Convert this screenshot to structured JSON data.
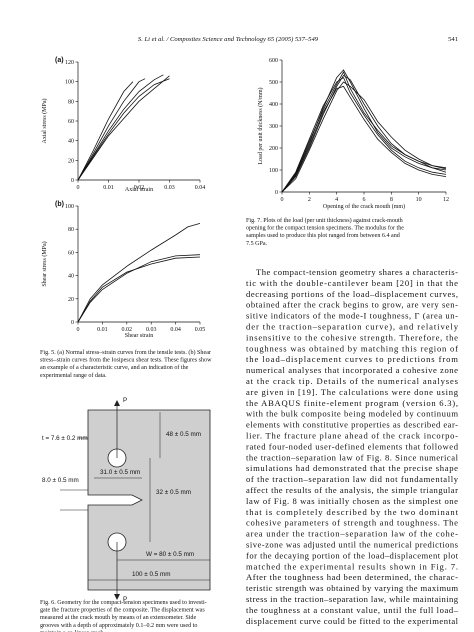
{
  "header": {
    "running_title": "S. Li et al. / Composites Science and Technology 65 (2005) 537–549",
    "page": "541"
  },
  "chart_data": [
    {
      "type": "line",
      "panel": "(a)",
      "xlabel": "Axial strain",
      "ylabel": "Axial stress (MPa)",
      "xlim": [
        0,
        0.04
      ],
      "xticks": [
        0,
        0.01,
        0.02,
        0.03,
        0.04
      ],
      "ylim": [
        0,
        120
      ],
      "yticks": [
        0,
        20,
        40,
        60,
        80,
        100,
        120
      ],
      "series": [
        {
          "color": "#111",
          "x": [
            0,
            0.005,
            0.01,
            0.015,
            0.018
          ],
          "values": [
            0,
            30,
            62,
            90,
            100
          ]
        },
        {
          "color": "#111",
          "x": [
            0,
            0.005,
            0.01,
            0.015,
            0.02,
            0.022
          ],
          "values": [
            0,
            27,
            55,
            80,
            100,
            103
          ]
        },
        {
          "color": "#111",
          "x": [
            0,
            0.005,
            0.01,
            0.015,
            0.02,
            0.025,
            0.028
          ],
          "values": [
            0,
            25,
            50,
            72,
            90,
            102,
            107
          ]
        },
        {
          "color": "#111",
          "x": [
            0,
            0.005,
            0.01,
            0.015,
            0.02,
            0.025,
            0.03
          ],
          "values": [
            0,
            24,
            47,
            68,
            85,
            97,
            103
          ]
        },
        {
          "color": "#111",
          "x": [
            0,
            0.01,
            0.02,
            0.03
          ],
          "values": [
            0,
            45,
            80,
            106
          ]
        }
      ]
    },
    {
      "type": "line",
      "panel": "(b)",
      "xlabel": "Shear strain",
      "ylabel": "Shear stress (MPa)",
      "xlim": [
        0,
        0.05
      ],
      "xticks": [
        0,
        0.01,
        0.02,
        0.03,
        0.04,
        0.05
      ],
      "ylim": [
        0,
        100
      ],
      "yticks": [
        0,
        20,
        40,
        60,
        80,
        100
      ],
      "series": [
        {
          "color": "#111",
          "x": [
            0,
            0.005,
            0.01,
            0.02,
            0.03,
            0.04,
            0.045,
            0.05
          ],
          "values": [
            0,
            20,
            32,
            48,
            62,
            75,
            82,
            85
          ]
        },
        {
          "color": "#111",
          "x": [
            0,
            0.005,
            0.01,
            0.02,
            0.03,
            0.04,
            0.05
          ],
          "values": [
            0,
            18,
            30,
            43,
            50,
            55,
            56
          ]
        },
        {
          "color": "#111",
          "x": [
            0,
            0.005,
            0.01,
            0.02,
            0.03,
            0.04,
            0.05
          ],
          "values": [
            0,
            17,
            28,
            42,
            52,
            57,
            58
          ]
        }
      ]
    },
    {
      "type": "line",
      "xlabel": "Opening of the crack mouth (mm)",
      "ylabel": "Load per unit thickness (N/mm)",
      "xlim": [
        0,
        12
      ],
      "xticks": [
        0,
        2,
        4,
        6,
        8,
        10,
        12
      ],
      "ylim": [
        0,
        600
      ],
      "yticks": [
        0,
        100,
        200,
        300,
        400,
        500,
        600
      ],
      "series": [
        {
          "color": "#111",
          "x": [
            0,
            1,
            2,
            3,
            4,
            4.5,
            5,
            6,
            7,
            8,
            9,
            10,
            11,
            12
          ],
          "values": [
            0,
            80,
            220,
            380,
            520,
            555,
            500,
            380,
            270,
            200,
            160,
            130,
            110,
            100
          ]
        },
        {
          "color": "#111",
          "x": [
            0,
            1,
            2,
            3,
            4,
            4.5,
            5,
            6,
            7,
            8,
            9,
            10,
            11,
            12
          ],
          "values": [
            0,
            70,
            200,
            350,
            480,
            530,
            510,
            400,
            300,
            220,
            170,
            140,
            120,
            110
          ]
        },
        {
          "color": "#111",
          "x": [
            0,
            1,
            2,
            3,
            4,
            4.5,
            5,
            6,
            7,
            8,
            9,
            10,
            11,
            12
          ],
          "values": [
            0,
            90,
            240,
            390,
            500,
            520,
            450,
            350,
            260,
            190,
            140,
            110,
            90,
            80
          ]
        },
        {
          "color": "#111",
          "x": [
            0,
            1,
            2,
            3,
            4,
            4.5,
            5,
            6,
            7,
            8,
            9,
            10,
            11,
            12
          ],
          "values": [
            0,
            60,
            190,
            330,
            460,
            500,
            480,
            420,
            320,
            250,
            190,
            150,
            120,
            105
          ]
        },
        {
          "color": "#111",
          "x": [
            0,
            1,
            2,
            3,
            4,
            4.5,
            5,
            6,
            7,
            8,
            9,
            10,
            11,
            12
          ],
          "values": [
            0,
            75,
            210,
            360,
            470,
            480,
            430,
            330,
            240,
            180,
            130,
            100,
            80,
            70
          ]
        },
        {
          "color": "#111",
          "x": [
            0,
            1,
            2,
            3,
            4,
            4.5,
            5,
            6,
            7,
            8,
            9,
            10,
            11,
            12
          ],
          "values": [
            0,
            85,
            230,
            370,
            490,
            545,
            470,
            360,
            280,
            210,
            170,
            140,
            110,
            90
          ]
        }
      ]
    }
  ],
  "figure6": {
    "labels": [
      "P",
      "48 ± 0.5 mm",
      "t = 7.6 ± 0.2 mm",
      "31.0 ± 0.5 mm",
      "32 ± 0.5 mm",
      "8.0 ± 0.5 mm",
      "W = 80 ± 0.5 mm",
      "100 ± 0.5 mm",
      "P"
    ]
  },
  "captions": {
    "fig5": [
      "Fig. 5. (a) Normal stress–strain curves from the tensile tests. (b) Shear",
      "stress–strain curves from the Iosipescu shear tests. These figures show",
      "an example of a characteristic curve, and an indication of the",
      "experimental range of data."
    ],
    "fig6": [
      "Fig. 6. Geometry for the compact-tension specimens used to investi-",
      "gate the fracture properties of the composite. The displacement was",
      "measured at the crack mouth by means of an extensometer. Side",
      "grooves with a depth of approximately 0.1–0.2 mm were used to",
      "maintain a co-linear crack."
    ],
    "fig7": [
      "Fig. 7. Plots of the load (per unit thickness) against crack-mouth",
      "opening for the compact tension specimens. The modulus for the",
      "samples used to produce this plot ranged from between 6.4 and",
      "7.5 GPa."
    ]
  },
  "body": [
    "The compact-tension geometry shares a characteris-",
    "tic with the double-cantilever beam [20] in that the",
    "decreasing portions of the load–displacement curves,",
    "obtained after the crack begins to grow, are very sen-",
    "sitive indicators of the mode-I toughness, Γ (area un-",
    "der the traction–separation curve), and relatively",
    "insensitive to the cohesive strength. Therefore, the",
    "toughness was obtained by matching this region of",
    "the load–displacement curves to predictions from",
    "numerical analyses that incorporated a cohesive zone",
    "at the crack tip. Details of the numerical analyses",
    "are given in [19]. The calculations were done using",
    "the ABAQUS finite-element program (version 6.3),",
    "with the bulk composite being modeled by continuum",
    "elements with constitutive properties as described ear-",
    "lier. The fracture plane ahead of the crack incorpo-",
    "rated four-noded user-defined elements that followed",
    "the traction–separation law of Fig. 8. Since numerical",
    "simulations had demonstrated that the precise shape",
    "of the traction–separation law did not fundamentally",
    "affect the results of the analysis, the simple triangular",
    "law of Fig. 8 was initially chosen as the simplest one",
    "that is completely described by the two dominant",
    "cohesive parameters of strength and toughness. The",
    "area under the traction–separation law of the cohe-",
    "sive-zone was adjusted until the numerical predictions",
    "for the decaying portion of the load–displacement plot",
    "matched the experimental results shown in Fig. 7.",
    "After the toughness had been determined, the charac-",
    "teristic strength was obtained by varying the maximum",
    "stress in the traction–separation law, while maintaining",
    "the toughness at a constant value, until the full load–",
    "displacement curve could be fitted to the experimental"
  ]
}
